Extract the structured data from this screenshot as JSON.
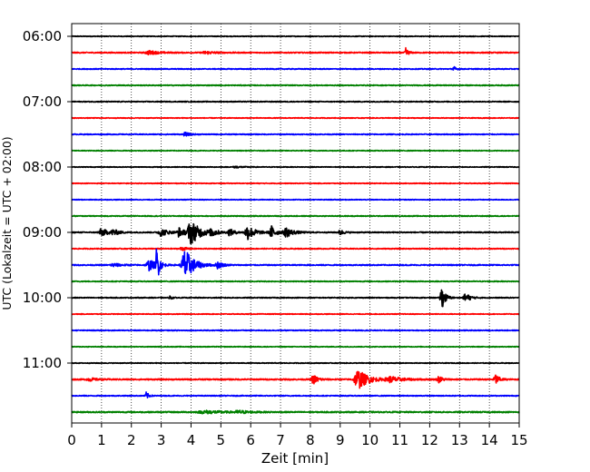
{
  "chart_data": {
    "type": "line",
    "title": "",
    "xlabel": "Zeit  [min]",
    "ylabel": "UTC (Lokalzeit = UTC + 02:00)",
    "xlim": [
      0,
      15
    ],
    "x_ticks": [
      "0",
      "1",
      "2",
      "3",
      "4",
      "5",
      "6",
      "7",
      "8",
      "9",
      "10",
      "11",
      "12",
      "13",
      "14",
      "15"
    ],
    "y_tick_labels": [
      "06:00",
      "07:00",
      "08:00",
      "09:00",
      "10:00",
      "11:00"
    ],
    "y_tick_rows": [
      0,
      4,
      8,
      12,
      16,
      20
    ],
    "grid": "vertical dotted",
    "colors": [
      "#000000",
      "#ff0000",
      "#0000ff",
      "#008000"
    ],
    "traces": [
      {
        "start": "06:00",
        "noise": 0.4,
        "events": []
      },
      {
        "start": "06:15",
        "noise": 0.6,
        "events": [
          {
            "t": 2.6,
            "amp": 2,
            "dur": 0.4
          },
          {
            "t": 4.5,
            "amp": 1.5,
            "dur": 0.4
          },
          {
            "t": 11.2,
            "amp": 5,
            "dur": 0.1
          }
        ]
      },
      {
        "start": "06:30",
        "noise": 0.5,
        "events": [
          {
            "t": 12.8,
            "amp": 3,
            "dur": 0.1
          }
        ]
      },
      {
        "start": "06:45",
        "noise": 0.5,
        "events": []
      },
      {
        "start": "07:00",
        "noise": 0.5,
        "events": []
      },
      {
        "start": "07:15",
        "noise": 0.4,
        "events": []
      },
      {
        "start": "07:30",
        "noise": 0.5,
        "events": [
          {
            "t": 3.8,
            "amp": 2,
            "dur": 0.2
          }
        ]
      },
      {
        "start": "07:45",
        "noise": 0.4,
        "events": []
      },
      {
        "start": "08:00",
        "noise": 0.4,
        "events": [
          {
            "t": 5.5,
            "amp": 1,
            "dur": 0.3
          }
        ]
      },
      {
        "start": "08:15",
        "noise": 0.4,
        "events": []
      },
      {
        "start": "08:30",
        "noise": 0.4,
        "events": []
      },
      {
        "start": "08:45",
        "noise": 0.5,
        "events": []
      },
      {
        "start": "09:00",
        "noise": 0.6,
        "events": [
          {
            "t": 1.0,
            "amp": 4,
            "dur": 0.3
          },
          {
            "t": 1.4,
            "amp": 3,
            "dur": 0.2
          },
          {
            "t": 3.0,
            "amp": 4,
            "dur": 0.3
          },
          {
            "t": 3.6,
            "amp": 5,
            "dur": 0.2
          },
          {
            "t": 4.0,
            "amp": 13,
            "dur": 0.4
          },
          {
            "t": 4.7,
            "amp": 4,
            "dur": 0.2
          },
          {
            "t": 5.3,
            "amp": 4,
            "dur": 0.2
          },
          {
            "t": 5.9,
            "amp": 8,
            "dur": 0.3
          },
          {
            "t": 6.7,
            "amp": 7,
            "dur": 0.2
          },
          {
            "t": 7.2,
            "amp": 5,
            "dur": 0.3
          },
          {
            "t": 9.0,
            "amp": 3,
            "dur": 0.15
          }
        ]
      },
      {
        "start": "09:15",
        "noise": 0.5,
        "events": [
          {
            "t": 3.7,
            "amp": 2,
            "dur": 0.2
          }
        ]
      },
      {
        "start": "09:30",
        "noise": 0.6,
        "events": [
          {
            "t": 1.4,
            "amp": 2,
            "dur": 0.3
          },
          {
            "t": 2.6,
            "amp": 6,
            "dur": 0.3
          },
          {
            "t": 2.85,
            "amp": 20,
            "dur": 0.1
          },
          {
            "t": 3.8,
            "amp": 18,
            "dur": 0.35
          },
          {
            "t": 4.9,
            "amp": 4,
            "dur": 0.2
          }
        ]
      },
      {
        "start": "09:45",
        "noise": 0.5,
        "events": []
      },
      {
        "start": "10:00",
        "noise": 0.5,
        "events": [
          {
            "t": 3.3,
            "amp": 2,
            "dur": 0.1
          },
          {
            "t": 12.4,
            "amp": 13,
            "dur": 0.15
          },
          {
            "t": 13.2,
            "amp": 5,
            "dur": 0.2
          }
        ]
      },
      {
        "start": "10:15",
        "noise": 0.4,
        "events": []
      },
      {
        "start": "10:30",
        "noise": 0.5,
        "events": []
      },
      {
        "start": "10:45",
        "noise": 0.4,
        "events": []
      },
      {
        "start": "11:00",
        "noise": 0.4,
        "events": []
      },
      {
        "start": "11:15",
        "noise": 0.7,
        "events": [
          {
            "t": 0.6,
            "amp": 1.5,
            "dur": 0.3
          },
          {
            "t": 8.1,
            "amp": 5,
            "dur": 0.2
          },
          {
            "t": 9.6,
            "amp": 11,
            "dur": 0.4
          },
          {
            "t": 10.7,
            "amp": 3,
            "dur": 0.5
          },
          {
            "t": 12.3,
            "amp": 4,
            "dur": 0.15
          },
          {
            "t": 14.2,
            "amp": 6,
            "dur": 0.15
          }
        ]
      },
      {
        "start": "11:30",
        "noise": 0.5,
        "events": [
          {
            "t": 2.5,
            "amp": 4,
            "dur": 0.1
          }
        ]
      },
      {
        "start": "11:45",
        "noise": 0.7,
        "events": [
          {
            "t": 4.5,
            "amp": 1.5,
            "dur": 0.8
          },
          {
            "t": 5.6,
            "amp": 1.5,
            "dur": 0.4
          }
        ]
      }
    ]
  }
}
